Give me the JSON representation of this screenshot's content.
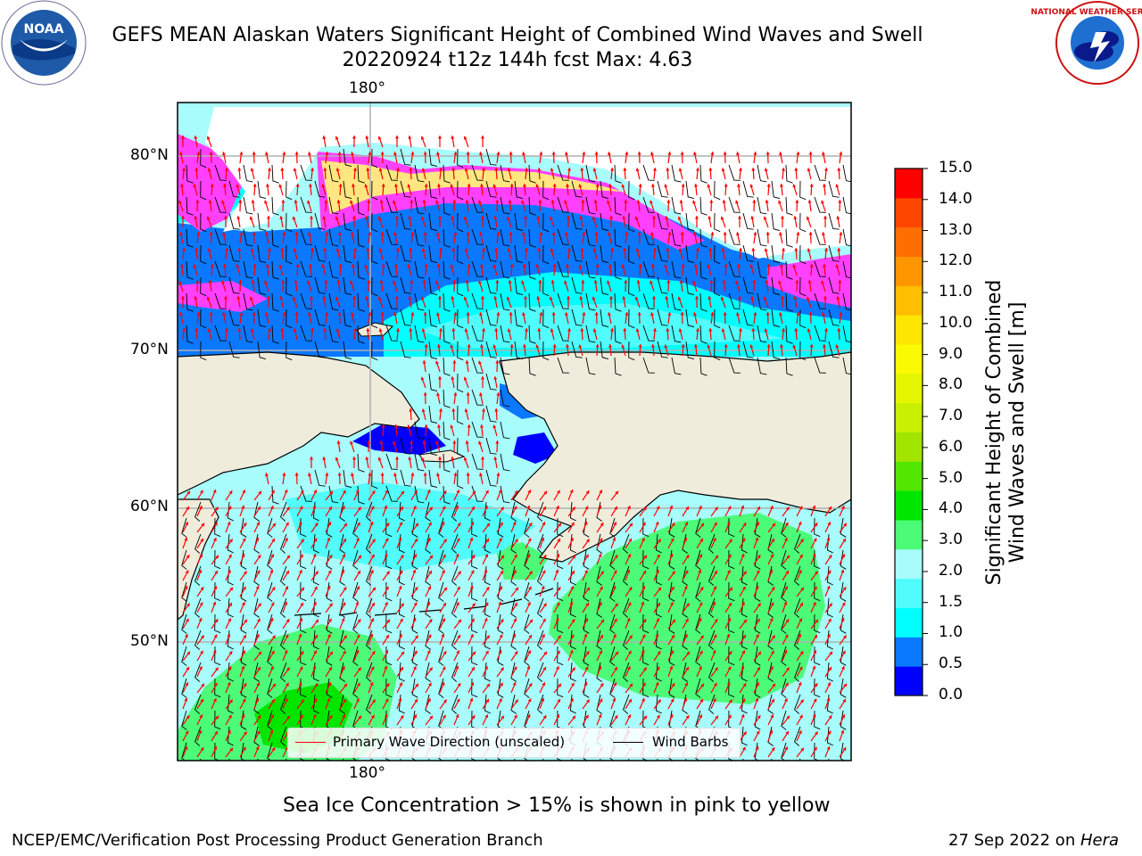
{
  "title": {
    "line1": "GEFS MEAN Alaskan Waters Significant Height of Combined Wind Waves and Swell",
    "line2": "20220924 t12z 144h fcst   Max: 4.63"
  },
  "map": {
    "lon_label_top": "180°",
    "lon_label_bottom": "180°",
    "lat_labels": [
      "80°N",
      "70°N",
      "60°N",
      "50°N"
    ],
    "colors": {
      "land": "#efecdc",
      "ocean_default": "#a8fcfc",
      "grid": "#b0b0b0",
      "wave_arrow": "#ff0000",
      "wind_barb": "#000000"
    }
  },
  "legend": {
    "wave_label": "Primary Wave Direction (unscaled)",
    "wind_label": "Wind Barbs"
  },
  "colorbar": {
    "title_line1": "Significant Height of Combined",
    "title_line2": "Wind Waves and Swell [m]",
    "ticks": [
      "15.0",
      "14.0",
      "13.0",
      "12.0",
      "11.0",
      "10.0",
      "9.0",
      "8.0",
      "7.0",
      "6.0",
      "5.0",
      "4.0",
      "3.0",
      "2.0",
      "1.5",
      "1.0",
      "0.5",
      "0.0"
    ],
    "colors": [
      "#0000ff",
      "#0a78ff",
      "#00ffff",
      "#50fcfc",
      "#a8fcfc",
      "#4cfc78",
      "#00e600",
      "#52e600",
      "#a2e600",
      "#c8f000",
      "#e6f500",
      "#fafa00",
      "#ffe600",
      "#ffbe00",
      "#ff9600",
      "#ff6e00",
      "#ff4600",
      "#ff0000"
    ]
  },
  "sea_ice_note": "Sea Ice Concentration > 15% is shown in pink to yellow",
  "footer": {
    "left": "NCEP/EMC/Verification Post Processing Product Generation Branch",
    "right_date": "27 Sep 2022 on ",
    "right_machine": "Hera"
  },
  "logos": {
    "noaa_text": "NOAA",
    "nws_text": "NATIONAL WEATHER SERVICE"
  }
}
